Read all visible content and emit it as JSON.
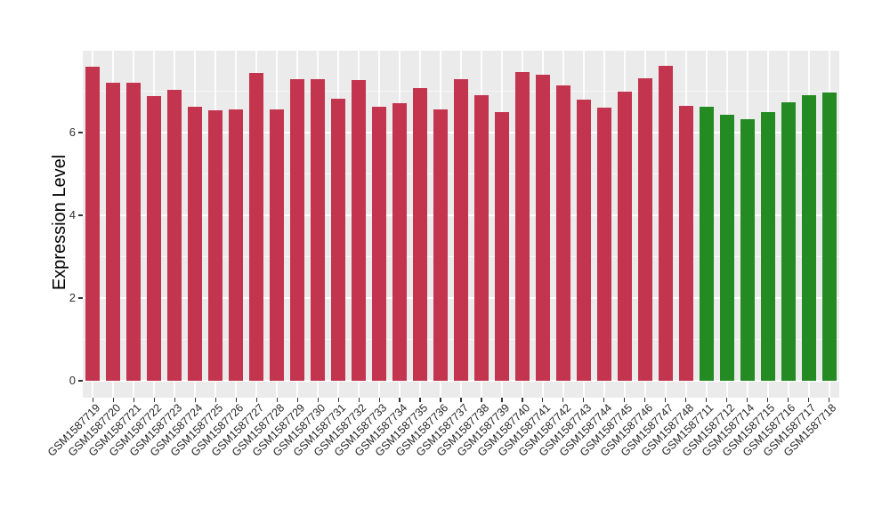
{
  "chart_data": {
    "type": "bar",
    "title": "",
    "xlabel": "",
    "ylabel": "Expression Level",
    "ylim": [
      0,
      8
    ],
    "yticks": [
      0,
      2,
      4,
      6
    ],
    "yticks_minor": [
      1,
      3,
      5,
      7
    ],
    "grid": "white major and minor horizontal lines plus white vertical line per category, on gray panel",
    "legend": "none",
    "panel_bg": "#EBEBEB",
    "axis_tick_color": "#333333",
    "axis_text_color": "#303030",
    "bar_width_fraction": 0.7,
    "categories": [
      "GSM1587719",
      "GSM1587720",
      "GSM1587721",
      "GSM1587722",
      "GSM1587723",
      "GSM1587724",
      "GSM1587725",
      "GSM1587726",
      "GSM1587727",
      "GSM1587728",
      "GSM1587729",
      "GSM1587730",
      "GSM1587731",
      "GSM1587732",
      "GSM1587733",
      "GSM1587734",
      "GSM1587735",
      "GSM1587736",
      "GSM1587737",
      "GSM1587738",
      "GSM1587739",
      "GSM1587740",
      "GSM1587741",
      "GSM1587742",
      "GSM1587743",
      "GSM1587744",
      "GSM1587745",
      "GSM1587746",
      "GSM1587747",
      "GSM1587748",
      "GSM1587711",
      "GSM1587712",
      "GSM1587714",
      "GSM1587715",
      "GSM1587716",
      "GSM1587717",
      "GSM1587718"
    ],
    "values": [
      7.59,
      7.2,
      7.21,
      6.88,
      7.03,
      6.62,
      6.54,
      6.55,
      7.44,
      6.56,
      7.3,
      7.3,
      6.81,
      7.27,
      6.62,
      6.71,
      7.07,
      6.57,
      7.3,
      6.9,
      6.49,
      7.47,
      7.39,
      7.15,
      6.8,
      6.6,
      6.98,
      7.31,
      7.61,
      6.65,
      6.63,
      6.43,
      6.32,
      6.49,
      6.74,
      6.91,
      6.96
    ],
    "colors": [
      "#C3344F",
      "#C3344F",
      "#C3344F",
      "#C3344F",
      "#C3344F",
      "#C3344F",
      "#C3344F",
      "#C3344F",
      "#C3344F",
      "#C3344F",
      "#C3344F",
      "#C3344F",
      "#C3344F",
      "#C3344F",
      "#C3344F",
      "#C3344F",
      "#C3344F",
      "#C3344F",
      "#C3344F",
      "#C3344F",
      "#C3344F",
      "#C3344F",
      "#C3344F",
      "#C3344F",
      "#C3344F",
      "#C3344F",
      "#C3344F",
      "#C3344F",
      "#C3344F",
      "#C3344F",
      "#238B22",
      "#238B22",
      "#238B22",
      "#238B22",
      "#238B22",
      "#238B22",
      "#238B22"
    ],
    "color_legend": {
      "red": "#C3344F",
      "green": "#238B22"
    }
  }
}
